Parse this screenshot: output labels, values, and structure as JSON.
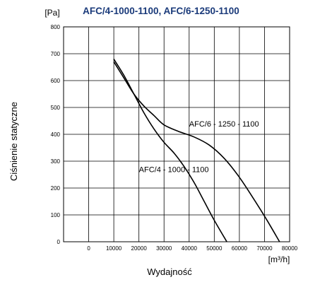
{
  "chart_data": {
    "type": "line",
    "title": "AFC/4-1000-1100, AFC/6-1250-1100",
    "xlabel": "Wydajność",
    "ylabel": "Ciśnienie statyczne",
    "x_unit": "[m³/h]",
    "y_unit": "[Pa]",
    "xlim": [
      -10000,
      80000
    ],
    "ylim": [
      0,
      800
    ],
    "x_ticks": [
      0,
      10000,
      20000,
      30000,
      40000,
      50000,
      60000,
      70000,
      80000
    ],
    "y_ticks": [
      0,
      100,
      200,
      300,
      400,
      500,
      600,
      700,
      800
    ],
    "grid": true,
    "series": [
      {
        "name": "AFC/4 - 1000 - 1100",
        "label_at": [
          20000,
          270
        ],
        "points": [
          [
            10000,
            680
          ],
          [
            14000,
            620
          ],
          [
            18000,
            550
          ],
          [
            22000,
            480
          ],
          [
            26000,
            420
          ],
          [
            30000,
            370
          ],
          [
            34000,
            330
          ],
          [
            38000,
            280
          ],
          [
            42000,
            220
          ],
          [
            46000,
            150
          ],
          [
            50000,
            80
          ],
          [
            55000,
            0
          ]
        ]
      },
      {
        "name": "AFC/6 - 1250 - 1100",
        "label_at": [
          40000,
          440
        ],
        "points": [
          [
            10000,
            670
          ],
          [
            14000,
            610
          ],
          [
            18000,
            550
          ],
          [
            22000,
            505
          ],
          [
            26000,
            470
          ],
          [
            30000,
            435
          ],
          [
            36000,
            410
          ],
          [
            42000,
            390
          ],
          [
            48000,
            360
          ],
          [
            54000,
            310
          ],
          [
            60000,
            240
          ],
          [
            66000,
            155
          ],
          [
            71000,
            80
          ],
          [
            76000,
            0
          ]
        ]
      }
    ]
  }
}
